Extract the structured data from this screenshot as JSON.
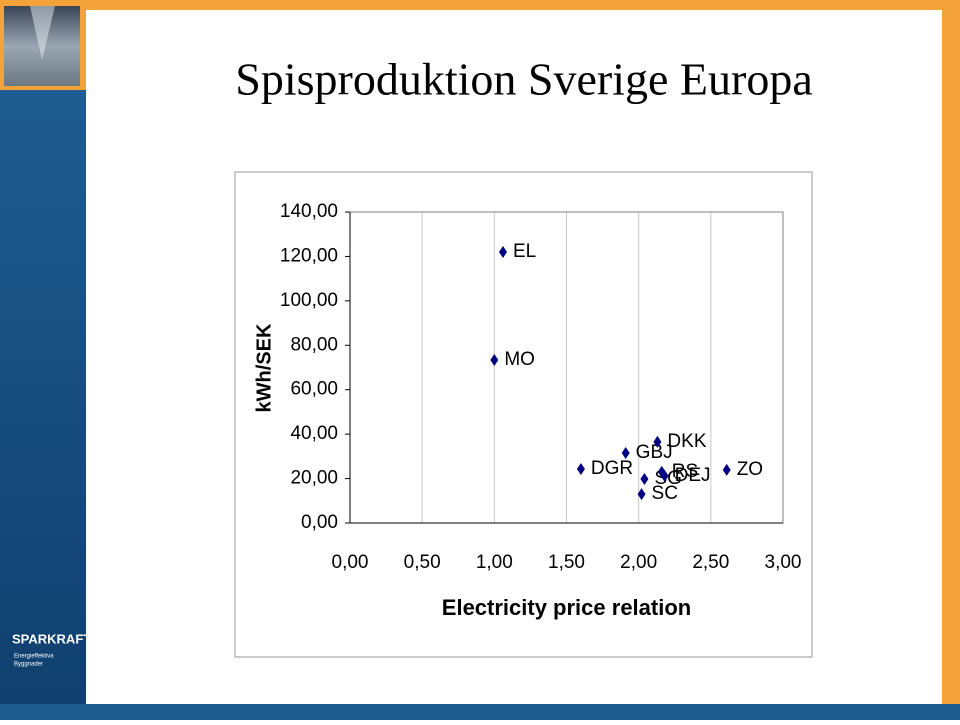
{
  "slide": {
    "title": "Spisproduktion Sverige Europa",
    "logo": {
      "name": "SPARKRAFT",
      "tagline_1": "Energieffektiva",
      "tagline_2": "Byggnader"
    }
  },
  "chart_data": {
    "type": "scatter",
    "x_label": "Electricity price relation",
    "y_label": "kWh/SEK",
    "x": [
      1.06,
      1.0,
      1.91,
      2.13,
      1.6,
      2.04,
      2.16,
      2.18,
      2.02,
      2.61
    ],
    "values": [
      122,
      73.4,
      31.5,
      36.5,
      24.3,
      19.8,
      23.0,
      21.2,
      13.0,
      23.9
    ],
    "point_labels": [
      "EL",
      "MO",
      "GBJ",
      "DKK",
      "DGR",
      "SG",
      "RS",
      "DEJ",
      "SC",
      "ZO"
    ],
    "color": "#000080",
    "xlim": [
      0,
      3
    ],
    "ylim": [
      0,
      140
    ],
    "xticks": [
      {
        "value": 0,
        "label": "0,00"
      },
      {
        "value": 0.5,
        "label": "0,50"
      },
      {
        "value": 1,
        "label": "1,00"
      },
      {
        "value": 1.5,
        "label": "1,50"
      },
      {
        "value": 2,
        "label": "2,00"
      },
      {
        "value": 2.5,
        "label": "2,50"
      },
      {
        "value": 3,
        "label": "3,00"
      }
    ],
    "yticks": [
      {
        "value": 0,
        "label": "0,00"
      },
      {
        "value": 20,
        "label": "20,00"
      },
      {
        "value": 40,
        "label": "40,00"
      },
      {
        "value": 60,
        "label": "60,00"
      },
      {
        "value": 80,
        "label": "80,00"
      },
      {
        "value": 100,
        "label": "100,00"
      },
      {
        "value": 120,
        "label": "120,00"
      },
      {
        "value": 140,
        "label": "140,00"
      }
    ],
    "grid": "x"
  }
}
